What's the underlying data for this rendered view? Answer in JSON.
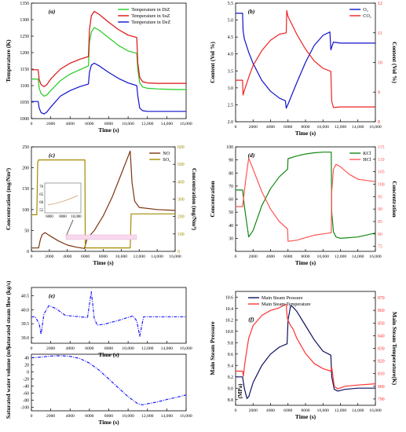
{
  "charts": [
    {
      "id": "a",
      "type": "line",
      "panel_label": "(a)",
      "xlabel": "Time (s)",
      "ylabel": "Temperature (K)",
      "xlim": [
        0,
        16000
      ],
      "ylim": [
        1000,
        1350
      ],
      "xticks": [
        0,
        2000,
        4000,
        6000,
        8000,
        10000,
        12000,
        14000,
        16000
      ],
      "xtick_labels": [
        "0",
        "2000",
        "4000",
        "6000",
        "8000",
        "10,000",
        "12,000",
        "14,000",
        "16,000"
      ],
      "yticks": [
        1000,
        1050,
        1100,
        1150,
        1200,
        1250,
        1300,
        1350
      ],
      "legend": "top-right",
      "grid": false,
      "series": [
        {
          "name": "Temperature in DiZ",
          "color": "#22cc22",
          "x": [
            0,
            700,
            800,
            1000,
            1300,
            1600,
            2000,
            3000,
            4000,
            5000,
            5900,
            6000,
            6200,
            6500,
            7000,
            8000,
            9000,
            10000,
            10900,
            11000,
            11200,
            11500,
            12000,
            13000,
            14000,
            15000,
            16000
          ],
          "y": [
            1120,
            1120,
            1092,
            1076,
            1068,
            1072,
            1085,
            1115,
            1135,
            1148,
            1160,
            1232,
            1262,
            1276,
            1268,
            1245,
            1222,
            1205,
            1198,
            1150,
            1108,
            1096,
            1092,
            1090,
            1089,
            1088,
            1088
          ]
        },
        {
          "name": "Temperature in SuZ",
          "color": "#dd1111",
          "x": [
            0,
            700,
            800,
            1000,
            1300,
            1600,
            2000,
            3000,
            4000,
            5000,
            5900,
            6000,
            6200,
            6500,
            7000,
            8000,
            9000,
            10000,
            10900,
            11000,
            11200,
            11500,
            12000,
            13000,
            14000,
            15000,
            16000
          ],
          "y": [
            1148,
            1148,
            1118,
            1103,
            1097,
            1103,
            1120,
            1150,
            1168,
            1180,
            1188,
            1268,
            1312,
            1325,
            1316,
            1292,
            1270,
            1253,
            1246,
            1170,
            1125,
            1112,
            1108,
            1107,
            1107,
            1107,
            1107
          ]
        },
        {
          "name": "Temperature in DeZ",
          "color": "#1111cc",
          "x": [
            0,
            700,
            800,
            1000,
            1300,
            1600,
            2000,
            3000,
            4000,
            5000,
            5900,
            6000,
            6200,
            6500,
            7000,
            8000,
            9000,
            10000,
            10900,
            11000,
            11200,
            11500,
            12000,
            13000,
            14000,
            15000,
            16000
          ],
          "y": [
            1052,
            1052,
            1032,
            1018,
            1014,
            1020,
            1035,
            1068,
            1085,
            1097,
            1105,
            1140,
            1162,
            1168,
            1160,
            1140,
            1122,
            1108,
            1100,
            1070,
            1032,
            1024,
            1022,
            1022,
            1022,
            1022,
            1022
          ]
        }
      ]
    },
    {
      "id": "b",
      "type": "line",
      "panel_label": "(b)",
      "xlabel": "Time (s)",
      "ylabel": "Content (Vol %)",
      "ylabel_right": "Content (Vol %)",
      "xlim": [
        0,
        16000
      ],
      "ylim": [
        2.0,
        5.5
      ],
      "ylim_right": [
        8,
        12
      ],
      "xticks": [
        0,
        2000,
        4000,
        6000,
        8000,
        10000,
        12000,
        14000,
        16000
      ],
      "xtick_labels": [
        "0",
        "2000",
        "4000",
        "6000",
        "8000",
        "10,000",
        "12,000",
        "14,000",
        "16,000"
      ],
      "yticks": [
        2.0,
        2.5,
        3.0,
        3.5,
        4.0,
        4.5,
        5.0,
        5.5
      ],
      "ytick_labels": [
        "2.0",
        "2.5",
        "3.0",
        "3.5",
        "4.0",
        "4.5",
        "5.0",
        "5.5"
      ],
      "yticks_right": [
        8,
        9,
        10,
        11,
        12
      ],
      "legend": "top-right",
      "grid": false,
      "series": [
        {
          "name": "O₂",
          "color": "#1111cc",
          "axis": "left",
          "x": [
            0,
            800,
            850,
            1000,
            1500,
            2000,
            3000,
            4000,
            5000,
            5700,
            5800,
            6000,
            7000,
            8000,
            9000,
            10000,
            10800,
            10900,
            11000,
            11200,
            12000,
            14000,
            16000
          ],
          "y": [
            5.2,
            5.2,
            4.7,
            4.45,
            4.05,
            3.72,
            3.22,
            2.9,
            2.7,
            2.62,
            2.4,
            2.52,
            3.15,
            3.75,
            4.25,
            4.55,
            4.65,
            4.12,
            4.2,
            4.35,
            4.32,
            4.32,
            4.32
          ]
        },
        {
          "name": "CO₂",
          "color": "#ee2222",
          "axis": "right",
          "x": [
            0,
            800,
            850,
            1000,
            1500,
            2000,
            3000,
            4000,
            5000,
            5800,
            5850,
            6000,
            7000,
            8000,
            9000,
            10000,
            10900,
            11000,
            11200,
            12000,
            14000,
            16000
          ],
          "y": [
            9.4,
            9.4,
            8.9,
            9.05,
            9.5,
            9.9,
            10.4,
            10.75,
            10.95,
            11.0,
            11.75,
            11.55,
            10.95,
            10.45,
            10.05,
            9.8,
            9.7,
            8.7,
            8.48,
            8.5,
            8.5,
            8.5
          ]
        }
      ]
    },
    {
      "id": "c",
      "type": "line",
      "panel_label": "(c)",
      "xlabel": "Time (s)",
      "ylabel": "Concentration (mg/Nm³)",
      "ylabel_right": "Concentration (mg/Nm³)",
      "xlim": [
        0,
        16000
      ],
      "ylim": [
        0,
        250
      ],
      "ylim_right": [
        0,
        600
      ],
      "xticks": [
        0,
        2000,
        4000,
        6000,
        8000,
        10000,
        12000,
        14000,
        16000
      ],
      "xtick_labels": [
        "0",
        "2000",
        "4000",
        "6000",
        "8000",
        "10,000",
        "12,000",
        "14,000",
        "16,000"
      ],
      "yticks": [
        0,
        50,
        100,
        150,
        200,
        250
      ],
      "yticks_right": [
        0,
        100,
        200,
        300,
        400,
        500,
        600
      ],
      "legend": "top-right",
      "grid": false,
      "inset": {
        "xticks": [
          "6000",
          "8000",
          "10,000"
        ],
        "yticks": [
          "55",
          "60",
          "65",
          "70"
        ]
      },
      "series": [
        {
          "name": "NO",
          "color": "#7a3410",
          "axis": "left",
          "x": [
            0,
            800,
            1000,
            1200,
            1500,
            2000,
            3000,
            4000,
            5000,
            5900,
            6200,
            7000,
            8000,
            9000,
            10000,
            11000,
            11200,
            11500,
            12000,
            14000,
            16000
          ],
          "y": [
            8,
            8,
            28,
            40,
            45,
            38,
            25,
            15,
            10,
            7,
            30,
            50,
            85,
            130,
            185,
            240,
            165,
            120,
            105,
            100,
            98
          ]
        },
        {
          "name": "SO₂",
          "color": "#a38a00",
          "axis": "right",
          "x": [
            0,
            600,
            700,
            800,
            5950,
            6000,
            11000,
            11100,
            16000
          ],
          "y": [
            210,
            210,
            510,
            525,
            525,
            20,
            20,
            215,
            215
          ]
        }
      ]
    },
    {
      "id": "d",
      "type": "line",
      "panel_label": "(d)",
      "xlabel": "Time (s)",
      "ylabel": "Concentration",
      "ylabel_right": "Concentration",
      "xlim": [
        0,
        16000
      ],
      "ylim": [
        20,
        100
      ],
      "ylim_right": [
        73,
        115
      ],
      "xticks": [
        0,
        2000,
        4000,
        6000,
        8000,
        10000,
        12000,
        14000,
        16000
      ],
      "xtick_labels": [
        "0",
        "2000",
        "4000",
        "6000",
        "8000",
        "10,000",
        "12,000",
        "14,000",
        "16,000"
      ],
      "yticks": [
        30,
        40,
        50,
        60,
        70,
        80,
        90,
        100
      ],
      "yticks_right": [
        75,
        80,
        85,
        90,
        95,
        100,
        105,
        110,
        115
      ],
      "legend": "top-right",
      "grid": false,
      "series": [
        {
          "name": "KCl",
          "color": "#118811",
          "axis": "left",
          "x": [
            0,
            800,
            1000,
            1200,
            1500,
            2000,
            3000,
            4000,
            5000,
            5950,
            6000,
            7000,
            8000,
            9000,
            10000,
            10950,
            11000,
            11200,
            11500,
            12000,
            14000,
            16000
          ],
          "y": [
            67,
            67,
            55,
            45,
            31,
            36,
            55,
            68,
            77,
            83,
            91,
            93,
            94.5,
            95.5,
            96,
            96,
            50,
            35,
            31,
            30,
            31,
            34
          ]
        },
        {
          "name": "HCl",
          "color": "#ff5555",
          "axis": "right",
          "x": [
            0,
            800,
            1000,
            1200,
            1500,
            2000,
            3000,
            4000,
            5000,
            5950,
            6000,
            7000,
            8000,
            9000,
            10000,
            10950,
            11000,
            11200,
            11500,
            12000,
            13000,
            14000,
            16000
          ],
          "y": [
            91,
            91,
            97,
            103,
            110.5,
            106,
            97,
            90,
            85,
            82,
            77,
            77.5,
            78.5,
            79.5,
            80,
            80.5,
            97,
            106,
            108,
            107,
            104,
            102,
            101
          ]
        }
      ]
    },
    {
      "id": "e1",
      "type": "line",
      "panel_label": "(e)",
      "xlabel": "Time (s)",
      "ylabel": "Saturated steam flow (kg/s)",
      "xlim": [
        0,
        16000
      ],
      "ylim": [
        38.8,
        40.8
      ],
      "xticks": [
        0,
        2000,
        4000,
        6000,
        8000,
        10000,
        12000,
        14000,
        16000
      ],
      "xtick_labels": [
        "0",
        "2000",
        "4000",
        "6000",
        "8000",
        "10,000",
        "12,000",
        "14,000",
        "16,000"
      ],
      "yticks": [
        39.0,
        39.5,
        40.0,
        40.5
      ],
      "ytick_labels": [
        "39.0",
        "39.5",
        "40.0",
        "40.5"
      ],
      "legend": "none",
      "grid": false,
      "series": [
        {
          "name": "",
          "color": "#1a1aff",
          "x": [
            0,
            400,
            800,
            1000,
            1300,
            1800,
            2500,
            3500,
            5000,
            5800,
            6200,
            6500,
            6800,
            7500,
            9000,
            10500,
            10900,
            11200,
            11600,
            12500,
            14000,
            16000
          ],
          "y": [
            39.75,
            39.75,
            39.5,
            39.12,
            39.85,
            40.15,
            40.05,
            39.8,
            39.75,
            39.72,
            40.65,
            39.7,
            39.45,
            39.48,
            39.62,
            39.78,
            39.6,
            39.05,
            39.75,
            39.75,
            39.75,
            39.75
          ]
        }
      ]
    },
    {
      "id": "e2",
      "type": "line",
      "panel_label": "",
      "xlabel": "Time (s)",
      "ylabel": "Saturated water volume (m³)",
      "xlim": [
        0,
        16000
      ],
      "ylim": [
        -110,
        50
      ],
      "xticks": [
        0,
        2000,
        4000,
        6000,
        8000,
        10000,
        12000,
        14000,
        16000
      ],
      "xtick_labels": [
        "0",
        "2000",
        "4000",
        "6000",
        "8000",
        "10,000",
        "12,000",
        "14,000",
        "16,000"
      ],
      "yticks": [
        -100,
        -80,
        -60,
        -40,
        -20,
        0,
        20,
        40
      ],
      "legend": "none",
      "grid": false,
      "series": [
        {
          "name": "",
          "color": "#1a1aff",
          "x": [
            0,
            1000,
            2000,
            3000,
            4000,
            5000,
            6000,
            7000,
            8000,
            9000,
            10000,
            11000,
            11500,
            12000,
            13000,
            14000,
            15000,
            16000
          ],
          "y": [
            40,
            42,
            45,
            46,
            44,
            38,
            25,
            5,
            -20,
            -45,
            -70,
            -90,
            -93,
            -90,
            -85,
            -78,
            -72,
            -65
          ]
        }
      ]
    },
    {
      "id": "f",
      "type": "line",
      "panel_label": "(f)",
      "xlabel": "Time (s)",
      "ylabel": "Main Steam Pressure",
      "ylabel_unit": "(MPa)",
      "ylabel_right": "Main Steam Temperature(K)",
      "xlim": [
        0,
        16000
      ],
      "ylim": [
        8.7,
        10.7
      ],
      "ylim_right": [
        785,
        875
      ],
      "xticks": [
        0,
        2000,
        4000,
        6000,
        8000,
        10000,
        12000,
        14000,
        16000
      ],
      "xtick_labels": [
        "0",
        "2000",
        "4000",
        "6000",
        "8000",
        "10,000",
        "12,000",
        "14,000",
        "16,000"
      ],
      "yticks": [
        8.8,
        9.0,
        9.2,
        9.4,
        9.6,
        9.8,
        10.0,
        10.2,
        10.4,
        10.6
      ],
      "ytick_labels": [
        "8.8",
        "9.0",
        "9.2",
        "9.4",
        "9.6",
        "9.8",
        "10.0",
        "10.2",
        "10.4",
        "10.6"
      ],
      "yticks_right": [
        790,
        800,
        810,
        820,
        830,
        840,
        850,
        860,
        870
      ],
      "legend": "top-left",
      "grid": false,
      "series": [
        {
          "name": "Main Steam Pressure",
          "color": "#101060",
          "axis": "left",
          "x": [
            0,
            800,
            1000,
            1300,
            1500,
            2000,
            3000,
            4000,
            5000,
            5900,
            6000,
            6300,
            6600,
            7000,
            8000,
            9000,
            10000,
            10900,
            11000,
            11300,
            11700,
            12500,
            14000,
            16000
          ],
          "y": [
            9.2,
            9.2,
            9.0,
            8.82,
            8.85,
            9.1,
            9.4,
            9.6,
            9.72,
            9.78,
            10.2,
            10.45,
            10.42,
            10.35,
            10.1,
            9.85,
            9.65,
            9.58,
            9.2,
            8.98,
            8.95,
            8.98,
            9.0,
            9.0
          ]
        },
        {
          "name": "Main Steam Temperature",
          "color": "#ff3333",
          "axis": "right",
          "x": [
            0,
            800,
            900,
            1000,
            1200,
            1500,
            2000,
            3000,
            4000,
            5000,
            5800,
            5900,
            6000,
            6300,
            6600,
            7000,
            8000,
            9000,
            10000,
            10900,
            11000,
            11300,
            11700,
            12500,
            14000,
            16000
          ],
          "y": [
            812,
            812,
            808,
            815,
            825,
            838,
            848,
            856,
            860,
            862,
            865,
            855,
            852,
            848,
            845,
            838,
            826,
            818,
            814,
            812,
            815,
            800,
            798,
            800,
            801,
            802
          ]
        }
      ]
    }
  ]
}
